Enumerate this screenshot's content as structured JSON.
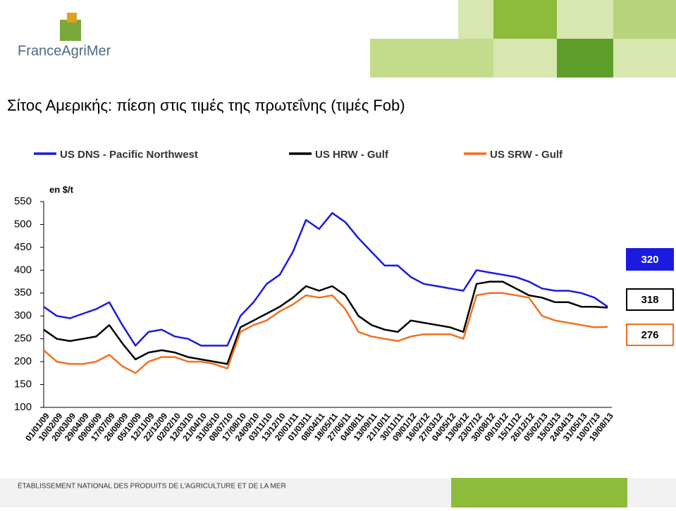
{
  "header": {
    "logo": "FranceAgriMer"
  },
  "footer": "ÉTABLISSEMENT NATIONAL DES PRODUITS DE L'AGRICULTURE ET DE LA MER",
  "chart_data": {
    "type": "line",
    "title": "Σίτος Αμερικής: πίεση στις τιμές της πρωτεΐνης (τιμές Fob)",
    "y_label": "en $/t",
    "categories": [
      "01/01/09",
      "10/02/09",
      "20/03/09",
      "29/04/09",
      "09/06/09",
      "17/07/09",
      "26/08/09",
      "05/10/09",
      "12/11/09",
      "22/12/09",
      "02/02/10",
      "12/03/10",
      "21/04/10",
      "31/05/10",
      "08/07/10",
      "17/08/10",
      "24/09/10",
      "03/11/10",
      "13/12/10",
      "20/01/11",
      "01/03/11",
      "08/04/11",
      "18/05/11",
      "27/06/11",
      "04/08/11",
      "13/09/11",
      "21/10/11",
      "30/11/11",
      "09/01/12",
      "16/02/12",
      "27/03/12",
      "04/05/12",
      "13/06/12",
      "23/07/12",
      "30/08/12",
      "09/10/12",
      "15/11/12",
      "26/12/12",
      "05/02/13",
      "15/03/13",
      "24/04/13",
      "31/05/13",
      "10/07/13",
      "19/08/13"
    ],
    "series": [
      {
        "name": "US  DNS - Pacific Northwest",
        "color": "#1a1ae0",
        "end_label": 320,
        "values": [
          320,
          300,
          295,
          305,
          315,
          330,
          280,
          235,
          265,
          270,
          255,
          250,
          235,
          235,
          235,
          300,
          330,
          370,
          390,
          440,
          510,
          490,
          525,
          505,
          470,
          440,
          410,
          410,
          385,
          370,
          365,
          360,
          355,
          400,
          395,
          390,
          385,
          375,
          360,
          355,
          355,
          350,
          340,
          320
        ]
      },
      {
        "name": "US HRW - Gulf",
        "color": "#000000",
        "end_label": 318,
        "values": [
          270,
          250,
          245,
          250,
          255,
          280,
          240,
          205,
          220,
          225,
          220,
          210,
          205,
          200,
          195,
          275,
          290,
          305,
          320,
          340,
          365,
          355,
          365,
          345,
          300,
          280,
          270,
          265,
          290,
          285,
          280,
          275,
          265,
          370,
          375,
          375,
          360,
          345,
          340,
          330,
          330,
          320,
          320,
          318
        ]
      },
      {
        "name": "US SRW - Gulf",
        "color": "#f07020",
        "end_label": 276,
        "values": [
          225,
          200,
          195,
          195,
          200,
          215,
          190,
          175,
          200,
          210,
          210,
          200,
          200,
          195,
          185,
          265,
          280,
          290,
          310,
          325,
          345,
          340,
          345,
          315,
          265,
          255,
          250,
          245,
          255,
          260,
          260,
          260,
          250,
          345,
          350,
          350,
          345,
          340,
          300,
          290,
          285,
          280,
          275,
          276
        ]
      }
    ],
    "ylim": [
      100,
      550
    ],
    "yticks": [
      100,
      150,
      200,
      250,
      300,
      350,
      400,
      450,
      500,
      550
    ]
  }
}
